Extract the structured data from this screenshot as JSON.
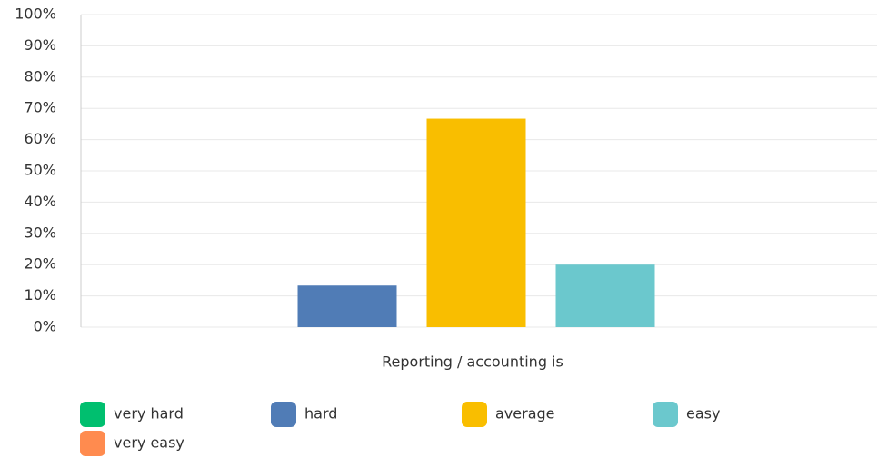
{
  "chart_data": {
    "type": "bar",
    "categories": [
      "Reporting / accounting is"
    ],
    "series": [
      {
        "name": "very hard",
        "color": "#00bf6f",
        "values": [
          0
        ]
      },
      {
        "name": "hard",
        "color": "#507cb6",
        "values": [
          13.3
        ]
      },
      {
        "name": "average",
        "color": "#f9be00",
        "values": [
          66.7
        ]
      },
      {
        "name": "easy",
        "color": "#6bc8cd",
        "values": [
          20
        ]
      },
      {
        "name": "very easy",
        "color": "#ff8b4f",
        "values": [
          0
        ]
      }
    ],
    "ylim": [
      0,
      100
    ],
    "yticks": [
      {
        "value": 0,
        "label": "0%"
      },
      {
        "value": 10,
        "label": "10%"
      },
      {
        "value": 20,
        "label": "20%"
      },
      {
        "value": 30,
        "label": "30%"
      },
      {
        "value": 40,
        "label": "40%"
      },
      {
        "value": 50,
        "label": "50%"
      },
      {
        "value": 60,
        "label": "60%"
      },
      {
        "value": 70,
        "label": "70%"
      },
      {
        "value": 80,
        "label": "80%"
      },
      {
        "value": 90,
        "label": "90%"
      },
      {
        "value": 100,
        "label": "100%"
      }
    ],
    "grid": true
  }
}
